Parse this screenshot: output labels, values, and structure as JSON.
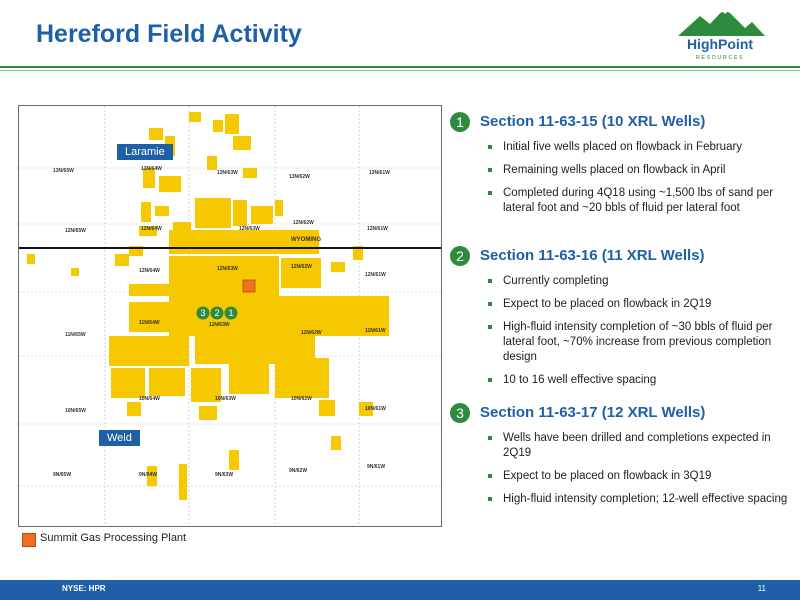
{
  "title": "Hereford Field Activity",
  "logo": {
    "name": "HighPoint",
    "sub": "RESOURCES"
  },
  "map": {
    "counties": [
      "Laramie",
      "Weld"
    ],
    "state": "WYOMING",
    "markers": [
      "3",
      "2",
      "1"
    ],
    "townships": [
      "13N/65W",
      "13N/64W",
      "13N/63W",
      "13N/62W",
      "13N/61W",
      "12N/65W",
      "12N/64W",
      "12N/63W",
      "12N/62W",
      "12N/61W",
      "12N/64W",
      "12N/63W",
      "12N/62W",
      "12N/61W",
      "11N/65W",
      "11N/64W",
      "11N/63W",
      "11N/62W",
      "11N/61W",
      "10N/65W",
      "10N/64W",
      "10N/63W",
      "10N/62W",
      "10N/61W",
      "9N/65W",
      "9N/64W",
      "9N/63W",
      "9N/62W",
      "9N/61W"
    ]
  },
  "legend": {
    "label": "Summit Gas Processing Plant",
    "color": "#f07020"
  },
  "sections": [
    {
      "num": "1",
      "title": "Section 11-63-15 (10 XRL Wells)",
      "bullets": [
        "Initial five wells placed on flowback in February",
        "Remaining wells placed on flowback in April",
        "Completed during 4Q18 using ~1,500 lbs of sand per lateral foot and ~20 bbls of fluid per lateral foot"
      ]
    },
    {
      "num": "2",
      "title": "Section 11-63-16 (11 XRL Wells)",
      "bullets": [
        "Currently completing",
        "Expect to be placed on flowback in 2Q19",
        "High-fluid intensity completion of ~30 bbls of fluid per lateral foot, ~70% increase from previous completion design",
        "10 to 16 well effective spacing"
      ]
    },
    {
      "num": "3",
      "title": "Section 11-63-17 (12 XRL Wells)",
      "bullets": [
        "Wells have been drilled and completions expected in 2Q19",
        "Expect to be placed on flowback in 3Q19",
        "High-fluid intensity completion; 12-well effective spacing"
      ]
    }
  ],
  "footer": {
    "ticker": "NYSE: HPR",
    "page": "11"
  },
  "colors": {
    "blue": "#1f5fa8",
    "green": "#2e8b3e",
    "acreage": "#f5c800",
    "plant": "#f07020"
  }
}
